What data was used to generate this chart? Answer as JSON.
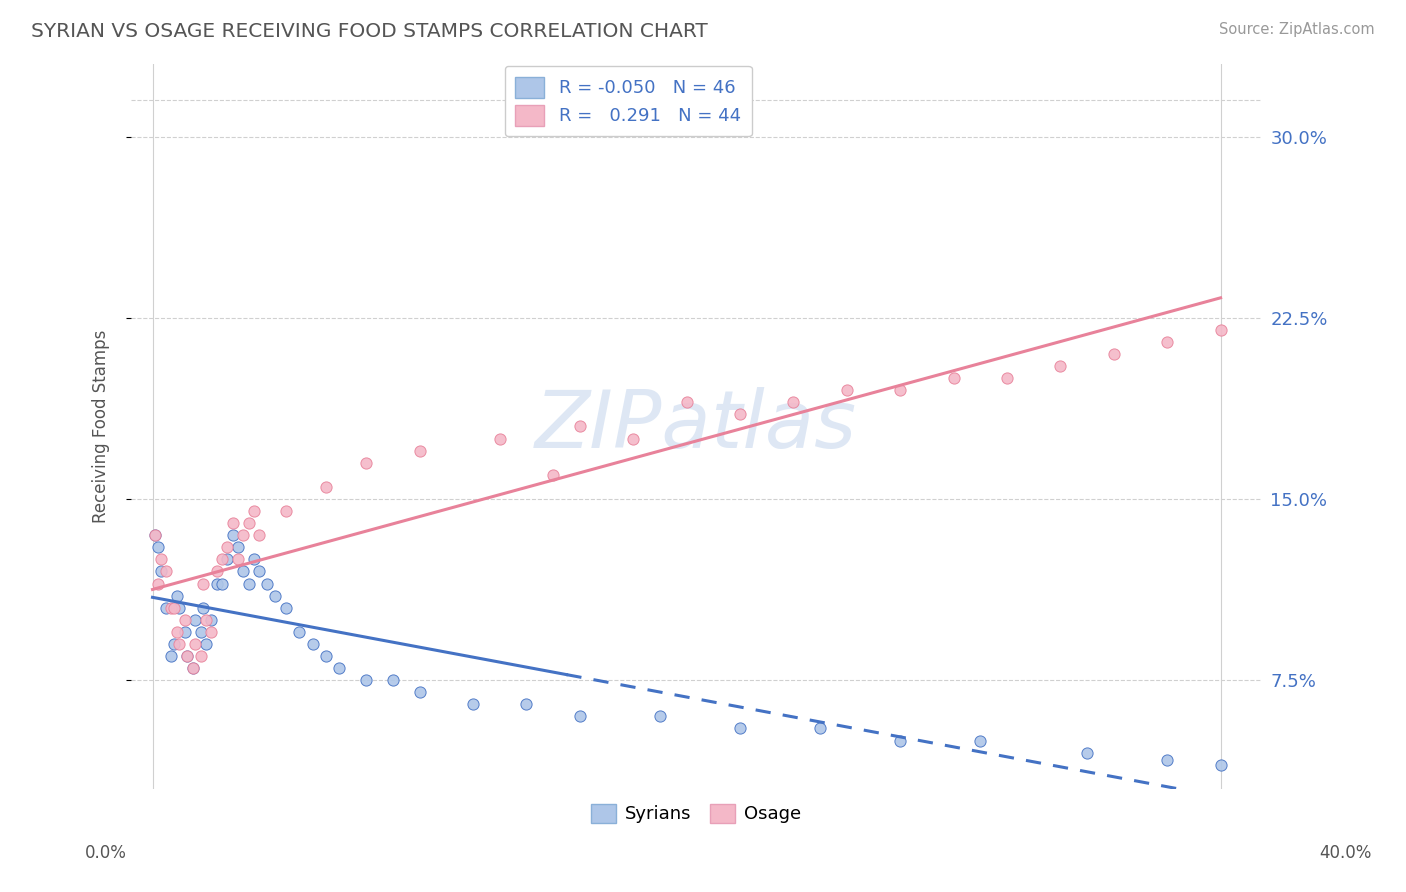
{
  "title": "SYRIAN VS OSAGE RECEIVING FOOD STAMPS CORRELATION CHART",
  "source": "Source: ZipAtlas.com",
  "ylabel": "Receiving Food Stamps",
  "yticks": [
    "7.5%",
    "15.0%",
    "22.5%",
    "30.0%"
  ],
  "ytick_vals": [
    0.075,
    0.15,
    0.225,
    0.3
  ],
  "ymin": 0.03,
  "ymax": 0.33,
  "xmin": -0.005,
  "xmax": 0.42,
  "color_blue": "#aec6e8",
  "color_pink": "#f4b8c8",
  "line_blue": "#4472c4",
  "line_pink": "#e8829a",
  "watermark": "ZIPatlas",
  "syrians_x": [
    0.001,
    0.002,
    0.003,
    0.005,
    0.007,
    0.008,
    0.009,
    0.01,
    0.012,
    0.013,
    0.015,
    0.016,
    0.018,
    0.019,
    0.02,
    0.022,
    0.024,
    0.026,
    0.028,
    0.03,
    0.032,
    0.034,
    0.036,
    0.038,
    0.04,
    0.043,
    0.046,
    0.05,
    0.055,
    0.06,
    0.065,
    0.07,
    0.08,
    0.09,
    0.1,
    0.12,
    0.14,
    0.16,
    0.19,
    0.22,
    0.25,
    0.28,
    0.31,
    0.35,
    0.38,
    0.4
  ],
  "syrians_y": [
    0.135,
    0.13,
    0.12,
    0.105,
    0.085,
    0.09,
    0.11,
    0.105,
    0.095,
    0.085,
    0.08,
    0.1,
    0.095,
    0.105,
    0.09,
    0.1,
    0.115,
    0.115,
    0.125,
    0.135,
    0.13,
    0.12,
    0.115,
    0.125,
    0.12,
    0.115,
    0.11,
    0.105,
    0.095,
    0.09,
    0.085,
    0.08,
    0.075,
    0.075,
    0.07,
    0.065,
    0.065,
    0.06,
    0.06,
    0.055,
    0.055,
    0.05,
    0.05,
    0.045,
    0.042,
    0.04
  ],
  "osage_x": [
    0.001,
    0.002,
    0.003,
    0.005,
    0.007,
    0.008,
    0.009,
    0.01,
    0.012,
    0.013,
    0.015,
    0.016,
    0.018,
    0.019,
    0.02,
    0.022,
    0.024,
    0.026,
    0.028,
    0.03,
    0.032,
    0.034,
    0.036,
    0.038,
    0.04,
    0.05,
    0.065,
    0.08,
    0.1,
    0.13,
    0.16,
    0.2,
    0.24,
    0.28,
    0.32,
    0.36,
    0.4,
    0.15,
    0.18,
    0.22,
    0.26,
    0.3,
    0.34,
    0.38
  ],
  "osage_y": [
    0.135,
    0.115,
    0.125,
    0.12,
    0.105,
    0.105,
    0.095,
    0.09,
    0.1,
    0.085,
    0.08,
    0.09,
    0.085,
    0.115,
    0.1,
    0.095,
    0.12,
    0.125,
    0.13,
    0.14,
    0.125,
    0.135,
    0.14,
    0.145,
    0.135,
    0.145,
    0.155,
    0.165,
    0.17,
    0.175,
    0.18,
    0.19,
    0.19,
    0.195,
    0.2,
    0.21,
    0.22,
    0.16,
    0.175,
    0.185,
    0.195,
    0.2,
    0.205,
    0.215
  ],
  "r_blue": "-0.050",
  "n_blue": "46",
  "r_pink": "0.291",
  "n_pink": "44"
}
